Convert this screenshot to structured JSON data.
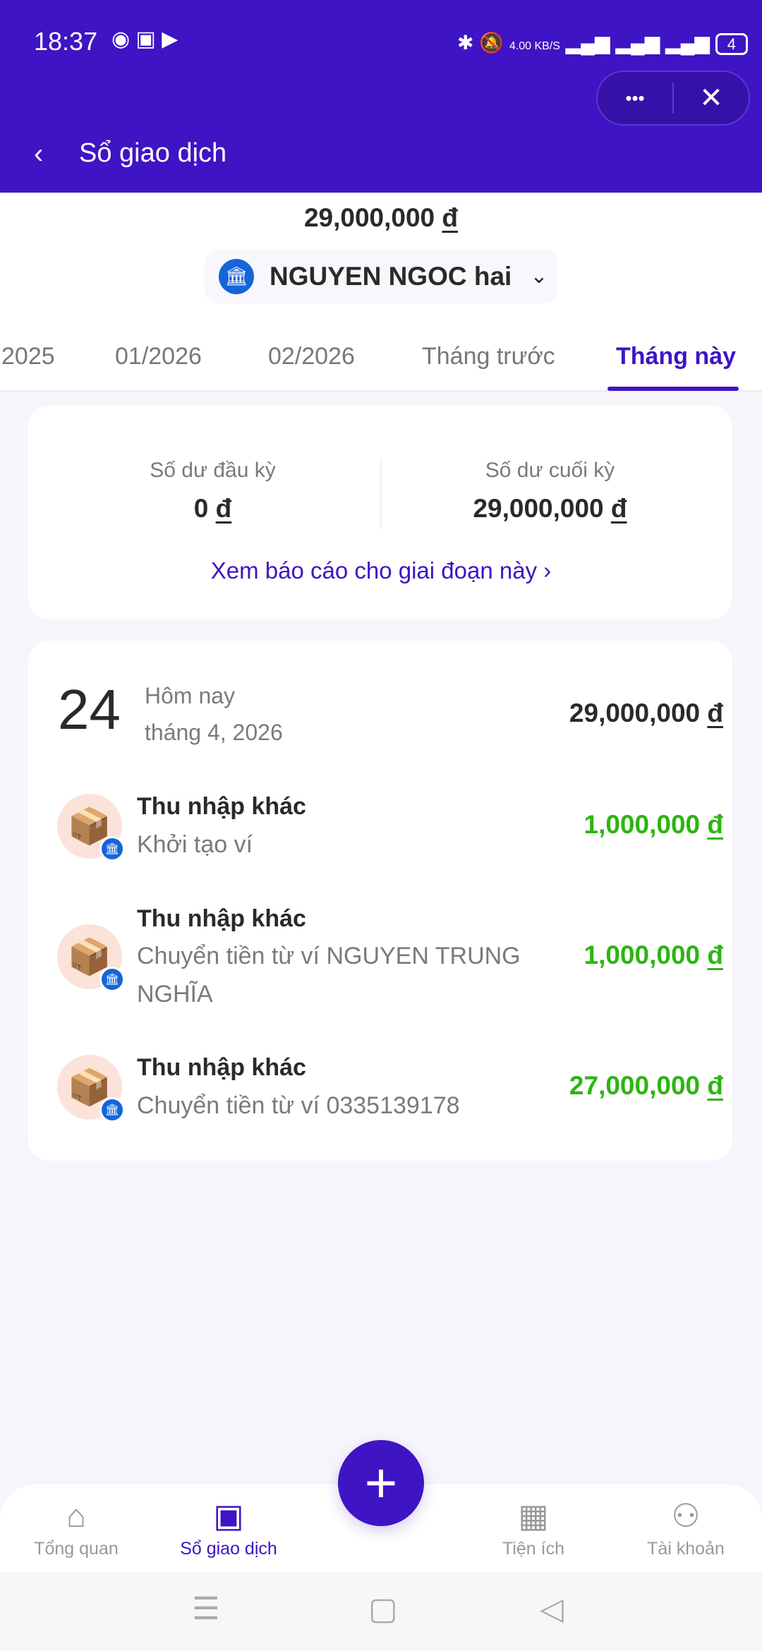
{
  "status_bar": {
    "time": "18:37",
    "network_speed": "4.00 KB/S",
    "battery": "4",
    "icons": [
      "messenger-icon",
      "app-icon",
      "video-icon",
      "bluetooth-icon",
      "bell-muted-icon",
      "wifi-icon",
      "signal-icon",
      "signal-icon",
      "battery-icon"
    ]
  },
  "header": {
    "title": "Sổ giao dịch",
    "more_label": "•••",
    "close_label": "✕"
  },
  "balance": {
    "amount": "29,000,000",
    "currency": "đ"
  },
  "account": {
    "name": "NGUYEN NGOC hai"
  },
  "tabs": [
    {
      "label": "2025"
    },
    {
      "label": "01/2026"
    },
    {
      "label": "02/2026"
    },
    {
      "label": "Tháng trước"
    },
    {
      "label": "Tháng này",
      "active": true
    }
  ],
  "summary": {
    "opening_label": "Số dư đầu kỳ",
    "opening_value": "0",
    "closing_label": "Số dư cuối kỳ",
    "closing_value": "29,000,000",
    "currency": "đ",
    "report_link": "Xem báo cáo cho giai đoạn này"
  },
  "day": {
    "date": "24",
    "relative": "Hôm nay",
    "month": "tháng 4, 2026",
    "total": "29,000,000",
    "currency": "đ"
  },
  "transactions": [
    {
      "category": "Thu nhập khác",
      "note": "Khởi tạo ví",
      "amount": "1,000,000",
      "currency": "đ"
    },
    {
      "category": "Thu nhập khác",
      "note": "Chuyển tiền từ ví NGUYEN TRUNG NGHĨA",
      "amount": "1,000,000",
      "currency": "đ"
    },
    {
      "category": "Thu nhập khác",
      "note": "Chuyển tiền từ ví 0335139178",
      "amount": "27,000,000",
      "currency": "đ"
    }
  ],
  "bottom_nav": [
    {
      "label": "Tổng quan"
    },
    {
      "label": "Sổ giao dịch",
      "active": true
    },
    {
      "label": "Tiện ích"
    },
    {
      "label": "Tài khoản"
    }
  ],
  "colors": {
    "primary": "#3f14c4",
    "income": "#2db512",
    "bank": "#1565d8"
  }
}
